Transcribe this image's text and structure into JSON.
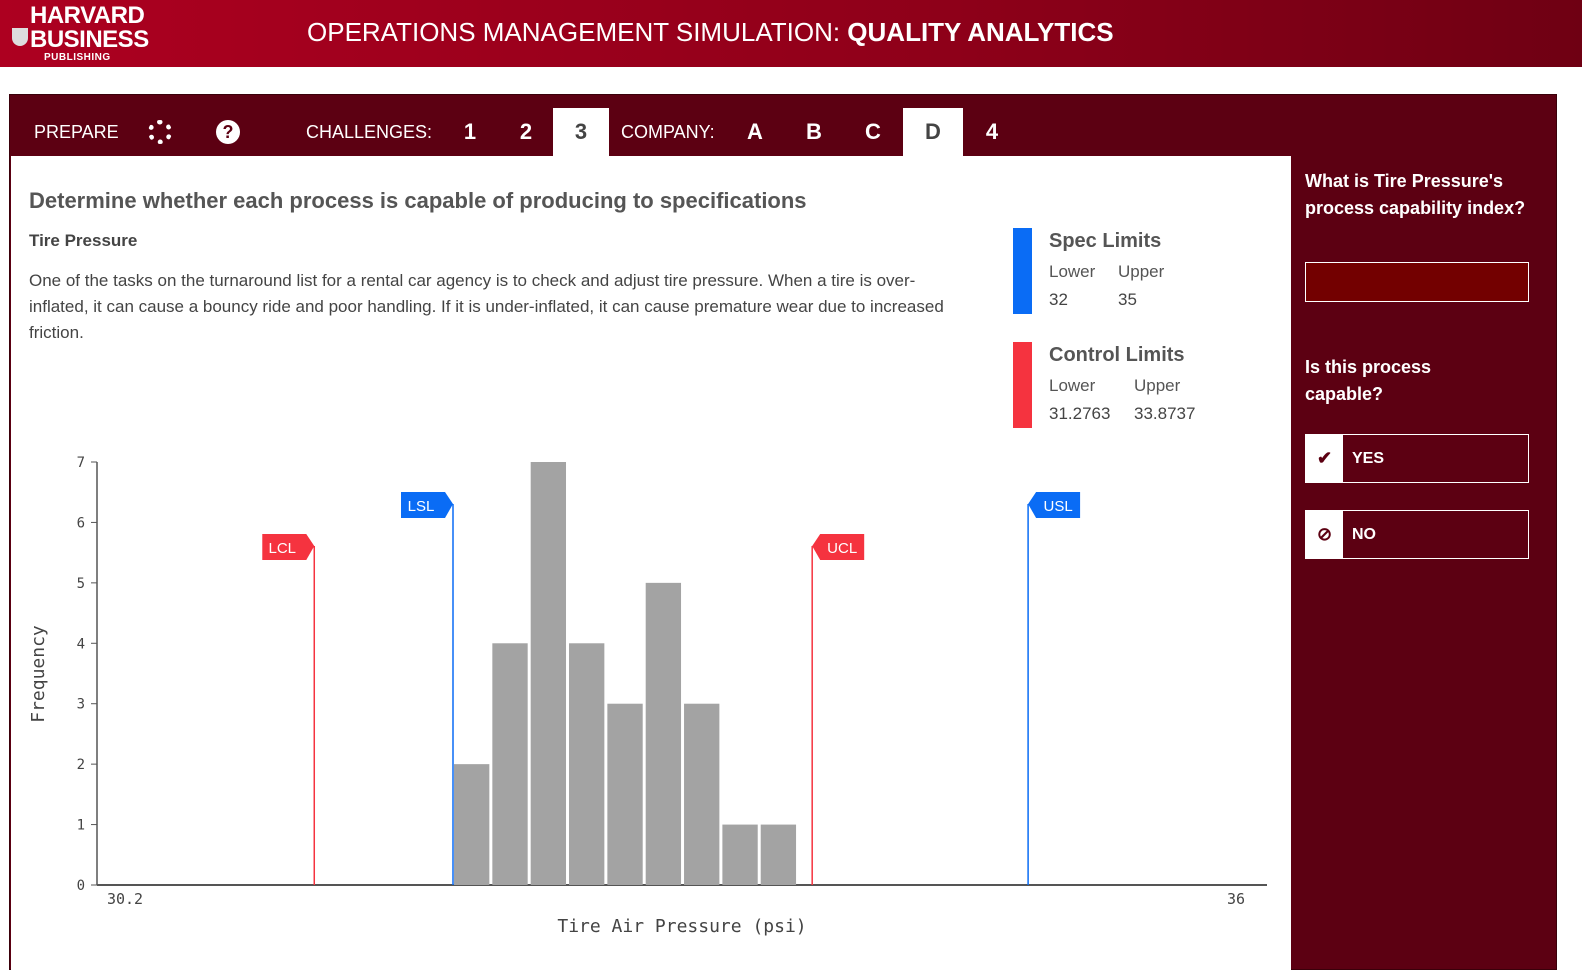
{
  "header": {
    "logo": [
      "HARVARD",
      "BUSINESS",
      "PUBLISHING"
    ],
    "title_prefix": "OPERATIONS MANAGEMENT SIMULATION: ",
    "title_bold": "QUALITY ANALYTICS"
  },
  "nav": {
    "prepare": "PREPARE",
    "icons": [
      "lifebuoy-icon",
      "help-icon"
    ],
    "challenges_label": "CHALLENGES:",
    "challenges": [
      "1",
      "2",
      "3"
    ],
    "company_label": "COMPANY:",
    "companies": [
      "A",
      "B",
      "C",
      "D"
    ],
    "last": "4",
    "active_challenge": "3",
    "active_company": "D"
  },
  "main": {
    "heading": "Determine whether each process is capable of producing to specifications",
    "subheading": "Tire Pressure",
    "description": "One of the tasks on the turnaround list for a rental car agency is to check and adjust tire pressure. When a tire is over-inflated, it can cause a bouncy ride and poor handling. If it is under-inflated, it can cause premature wear due to increased friction."
  },
  "spec_limits": {
    "title": "Spec Limits",
    "lower_label": "Lower",
    "upper_label": "Upper",
    "lower": "32",
    "upper": "35",
    "color": "#0a6cf5"
  },
  "control_limits": {
    "title": "Control Limits",
    "lower_label": "Lower",
    "upper_label": "Upper",
    "lower": "31.2763",
    "upper": "33.8737",
    "color": "#f5333f"
  },
  "sidebar": {
    "question1": "What is Tire Pressure's process capability index?",
    "answer1": "",
    "question2": "Is this process capable?",
    "yes": "YES",
    "no": "NO"
  },
  "chart_data": {
    "type": "bar",
    "xlabel": "Tire Air Pressure (psi)",
    "ylabel": "Frequency",
    "x_tick_labels": [
      "30.2",
      "36"
    ],
    "xlim": [
      30.2,
      36
    ],
    "ylim": [
      0,
      7
    ],
    "y_ticks": [
      "0",
      "1",
      "2",
      "3",
      "4",
      "5",
      "6",
      "7"
    ],
    "bin_width": 0.2,
    "bin_starts": [
      32.0,
      32.2,
      32.4,
      32.6,
      32.8,
      33.0,
      33.2,
      33.4,
      33.6
    ],
    "values": [
      2,
      4,
      7,
      4,
      3,
      5,
      3,
      1,
      1
    ],
    "bar_color": "#a3a3a3",
    "grid": false,
    "lines": [
      {
        "label": "LCL",
        "value": 31.2763,
        "color": "#f5333f"
      },
      {
        "label": "LSL",
        "value": 32,
        "color": "#0a6cf5"
      },
      {
        "label": "UCL",
        "value": 33.8737,
        "color": "#f5333f"
      },
      {
        "label": "USL",
        "value": 35,
        "color": "#0a6cf5"
      }
    ]
  }
}
